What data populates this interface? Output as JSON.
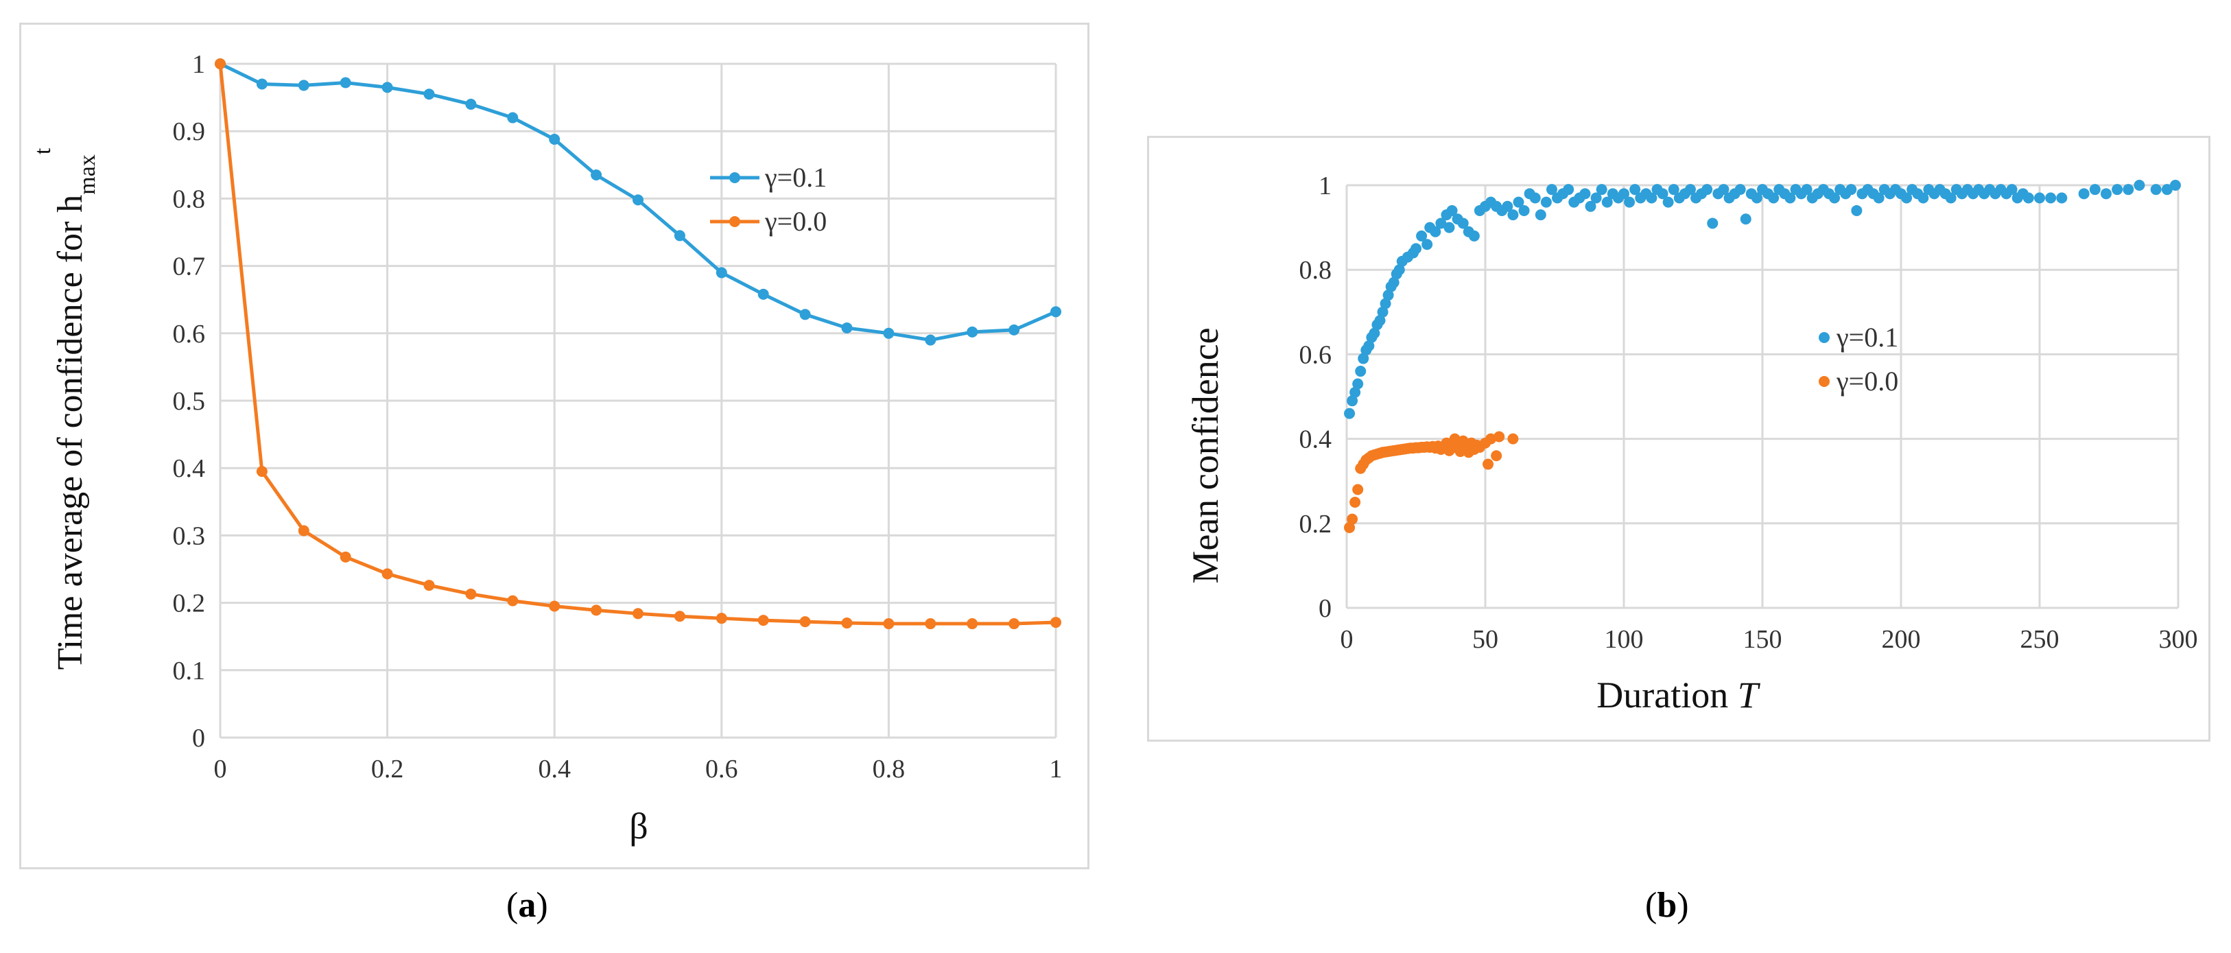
{
  "colors": {
    "blue": "#2e9fd8",
    "orange": "#f47b20",
    "grid": "#d9d9d9"
  },
  "captions": {
    "a_open": "(",
    "a_letter": "a",
    "a_close": ")",
    "b_open": "(",
    "b_letter": "b",
    "b_close": ")"
  },
  "chart_data": [
    {
      "type": "line",
      "panel": "a",
      "ylabel_main": "Time average of confidence for h",
      "ylabel_sub": "max",
      "ylabel_sup": "t",
      "xlabel": "β",
      "xlim": [
        0,
        1
      ],
      "ylim": [
        0,
        1
      ],
      "xticks": [
        0,
        0.2,
        0.4,
        0.6,
        0.8,
        1
      ],
      "xtick_labels": [
        "0",
        "0.2",
        "0.4",
        "0.6",
        "0.8",
        "1"
      ],
      "yticks": [
        0,
        0.1,
        0.2,
        0.3,
        0.4,
        0.5,
        0.6,
        0.7,
        0.8,
        0.9,
        1
      ],
      "ytick_labels": [
        "0",
        "0.1",
        "0.2",
        "0.3",
        "0.4",
        "0.5",
        "0.6",
        "0.7",
        "0.8",
        "0.9",
        "1"
      ],
      "legend": "right",
      "x": [
        0,
        0.05,
        0.1,
        0.15,
        0.2,
        0.25,
        0.3,
        0.35,
        0.4,
        0.45,
        0.5,
        0.55,
        0.6,
        0.65,
        0.7,
        0.75,
        0.8,
        0.85,
        0.9,
        0.95,
        1
      ],
      "series": [
        {
          "name": "γ=0.1",
          "color": "#2e9fd8",
          "values": [
            1.0,
            0.97,
            0.968,
            0.972,
            0.965,
            0.955,
            0.94,
            0.92,
            0.888,
            0.835,
            0.798,
            0.745,
            0.69,
            0.658,
            0.628,
            0.608,
            0.6,
            0.59,
            0.602,
            0.605,
            0.632
          ]
        },
        {
          "name": "γ=0.0",
          "color": "#f47b20",
          "values": [
            1.0,
            0.395,
            0.307,
            0.268,
            0.243,
            0.226,
            0.213,
            0.203,
            0.195,
            0.189,
            0.184,
            0.18,
            0.177,
            0.174,
            0.172,
            0.17,
            0.169,
            0.169,
            0.169,
            0.169,
            0.171
          ]
        }
      ]
    },
    {
      "type": "scatter",
      "panel": "b",
      "ylabel": "Mean confidence",
      "xlabel_main": "Duration ",
      "xlabel_var": "T",
      "xlim": [
        0,
        300
      ],
      "ylim": [
        0,
        1
      ],
      "xticks": [
        0,
        50,
        100,
        150,
        200,
        250,
        300
      ],
      "xtick_labels": [
        "0",
        "50",
        "100",
        "150",
        "200",
        "250",
        "300"
      ],
      "yticks": [
        0,
        0.2,
        0.4,
        0.6,
        0.8,
        1
      ],
      "ytick_labels": [
        "0",
        "0.2",
        "0.4",
        "0.6",
        "0.8",
        "1"
      ],
      "legend": "center-right",
      "series": [
        {
          "name": "γ=0.1",
          "color": "#2e9fd8",
          "points": [
            [
              1,
              0.46
            ],
            [
              2,
              0.49
            ],
            [
              3,
              0.51
            ],
            [
              4,
              0.53
            ],
            [
              5,
              0.56
            ],
            [
              6,
              0.59
            ],
            [
              7,
              0.61
            ],
            [
              8,
              0.62
            ],
            [
              9,
              0.64
            ],
            [
              10,
              0.65
            ],
            [
              11,
              0.67
            ],
            [
              12,
              0.68
            ],
            [
              13,
              0.7
            ],
            [
              14,
              0.72
            ],
            [
              15,
              0.74
            ],
            [
              16,
              0.76
            ],
            [
              17,
              0.77
            ],
            [
              18,
              0.79
            ],
            [
              19,
              0.8
            ],
            [
              20,
              0.82
            ],
            [
              22,
              0.83
            ],
            [
              24,
              0.84
            ],
            [
              25,
              0.85
            ],
            [
              27,
              0.88
            ],
            [
              29,
              0.86
            ],
            [
              30,
              0.9
            ],
            [
              32,
              0.89
            ],
            [
              34,
              0.91
            ],
            [
              36,
              0.93
            ],
            [
              37,
              0.9
            ],
            [
              38,
              0.94
            ],
            [
              40,
              0.92
            ],
            [
              42,
              0.91
            ],
            [
              44,
              0.89
            ],
            [
              46,
              0.88
            ],
            [
              48,
              0.94
            ],
            [
              50,
              0.95
            ],
            [
              52,
              0.96
            ],
            [
              54,
              0.95
            ],
            [
              56,
              0.94
            ],
            [
              58,
              0.95
            ],
            [
              60,
              0.93
            ],
            [
              62,
              0.96
            ],
            [
              64,
              0.94
            ],
            [
              66,
              0.98
            ],
            [
              68,
              0.97
            ],
            [
              70,
              0.93
            ],
            [
              72,
              0.96
            ],
            [
              74,
              0.99
            ],
            [
              76,
              0.97
            ],
            [
              78,
              0.98
            ],
            [
              80,
              0.99
            ],
            [
              82,
              0.96
            ],
            [
              84,
              0.97
            ],
            [
              86,
              0.98
            ],
            [
              88,
              0.95
            ],
            [
              90,
              0.97
            ],
            [
              92,
              0.99
            ],
            [
              94,
              0.96
            ],
            [
              96,
              0.98
            ],
            [
              98,
              0.97
            ],
            [
              100,
              0.98
            ],
            [
              102,
              0.96
            ],
            [
              104,
              0.99
            ],
            [
              106,
              0.97
            ],
            [
              108,
              0.98
            ],
            [
              110,
              0.97
            ],
            [
              112,
              0.99
            ],
            [
              114,
              0.98
            ],
            [
              116,
              0.96
            ],
            [
              118,
              0.99
            ],
            [
              120,
              0.97
            ],
            [
              122,
              0.98
            ],
            [
              124,
              0.99
            ],
            [
              126,
              0.97
            ],
            [
              128,
              0.98
            ],
            [
              130,
              0.99
            ],
            [
              132,
              0.91
            ],
            [
              134,
              0.98
            ],
            [
              136,
              0.99
            ],
            [
              138,
              0.97
            ],
            [
              140,
              0.98
            ],
            [
              142,
              0.99
            ],
            [
              144,
              0.92
            ],
            [
              146,
              0.98
            ],
            [
              148,
              0.97
            ],
            [
              150,
              0.99
            ],
            [
              152,
              0.98
            ],
            [
              154,
              0.97
            ],
            [
              156,
              0.99
            ],
            [
              158,
              0.98
            ],
            [
              160,
              0.97
            ],
            [
              162,
              0.99
            ],
            [
              164,
              0.98
            ],
            [
              166,
              0.99
            ],
            [
              168,
              0.97
            ],
            [
              170,
              0.98
            ],
            [
              172,
              0.99
            ],
            [
              174,
              0.98
            ],
            [
              176,
              0.97
            ],
            [
              178,
              0.99
            ],
            [
              180,
              0.98
            ],
            [
              182,
              0.99
            ],
            [
              184,
              0.94
            ],
            [
              186,
              0.98
            ],
            [
              188,
              0.99
            ],
            [
              190,
              0.98
            ],
            [
              192,
              0.97
            ],
            [
              194,
              0.99
            ],
            [
              196,
              0.98
            ],
            [
              198,
              0.99
            ],
            [
              200,
              0.98
            ],
            [
              202,
              0.97
            ],
            [
              204,
              0.99
            ],
            [
              206,
              0.98
            ],
            [
              208,
              0.97
            ],
            [
              210,
              0.99
            ],
            [
              212,
              0.98
            ],
            [
              214,
              0.99
            ],
            [
              216,
              0.98
            ],
            [
              218,
              0.97
            ],
            [
              220,
              0.99
            ],
            [
              222,
              0.98
            ],
            [
              224,
              0.99
            ],
            [
              226,
              0.98
            ],
            [
              228,
              0.99
            ],
            [
              230,
              0.98
            ],
            [
              232,
              0.99
            ],
            [
              234,
              0.98
            ],
            [
              236,
              0.99
            ],
            [
              238,
              0.98
            ],
            [
              240,
              0.99
            ],
            [
              242,
              0.97
            ],
            [
              244,
              0.98
            ],
            [
              246,
              0.97
            ],
            [
              250,
              0.97
            ],
            [
              254,
              0.97
            ],
            [
              258,
              0.97
            ],
            [
              266,
              0.98
            ],
            [
              270,
              0.99
            ],
            [
              274,
              0.98
            ],
            [
              278,
              0.99
            ],
            [
              282,
              0.99
            ],
            [
              286,
              1.0
            ],
            [
              292,
              0.99
            ],
            [
              296,
              0.99
            ],
            [
              299,
              1.0
            ]
          ]
        },
        {
          "name": "γ=0.0",
          "color": "#f47b20",
          "points": [
            [
              1,
              0.19
            ],
            [
              2,
              0.21
            ],
            [
              3,
              0.25
            ],
            [
              4,
              0.28
            ],
            [
              5,
              0.33
            ],
            [
              6,
              0.34
            ],
            [
              7,
              0.35
            ],
            [
              8,
              0.355
            ],
            [
              9,
              0.36
            ],
            [
              10,
              0.362
            ],
            [
              11,
              0.364
            ],
            [
              12,
              0.366
            ],
            [
              13,
              0.368
            ],
            [
              14,
              0.369
            ],
            [
              15,
              0.37
            ],
            [
              16,
              0.371
            ],
            [
              17,
              0.372
            ],
            [
              18,
              0.373
            ],
            [
              19,
              0.374
            ],
            [
              20,
              0.375
            ],
            [
              21,
              0.376
            ],
            [
              22,
              0.377
            ],
            [
              23,
              0.378
            ],
            [
              24,
              0.378
            ],
            [
              25,
              0.379
            ],
            [
              26,
              0.379
            ],
            [
              27,
              0.38
            ],
            [
              28,
              0.38
            ],
            [
              29,
              0.381
            ],
            [
              30,
              0.38
            ],
            [
              31,
              0.382
            ],
            [
              32,
              0.378
            ],
            [
              33,
              0.383
            ],
            [
              34,
              0.375
            ],
            [
              35,
              0.38
            ],
            [
              36,
              0.39
            ],
            [
              37,
              0.372
            ],
            [
              38,
              0.385
            ],
            [
              39,
              0.4
            ],
            [
              40,
              0.378
            ],
            [
              41,
              0.37
            ],
            [
              42,
              0.395
            ],
            [
              43,
              0.382
            ],
            [
              44,
              0.368
            ],
            [
              45,
              0.39
            ],
            [
              46,
              0.375
            ],
            [
              47,
              0.385
            ],
            [
              48,
              0.38
            ],
            [
              50,
              0.39
            ],
            [
              51,
              0.34
            ],
            [
              52,
              0.4
            ],
            [
              54,
              0.36
            ],
            [
              55,
              0.405
            ],
            [
              60,
              0.4
            ]
          ]
        }
      ]
    }
  ]
}
